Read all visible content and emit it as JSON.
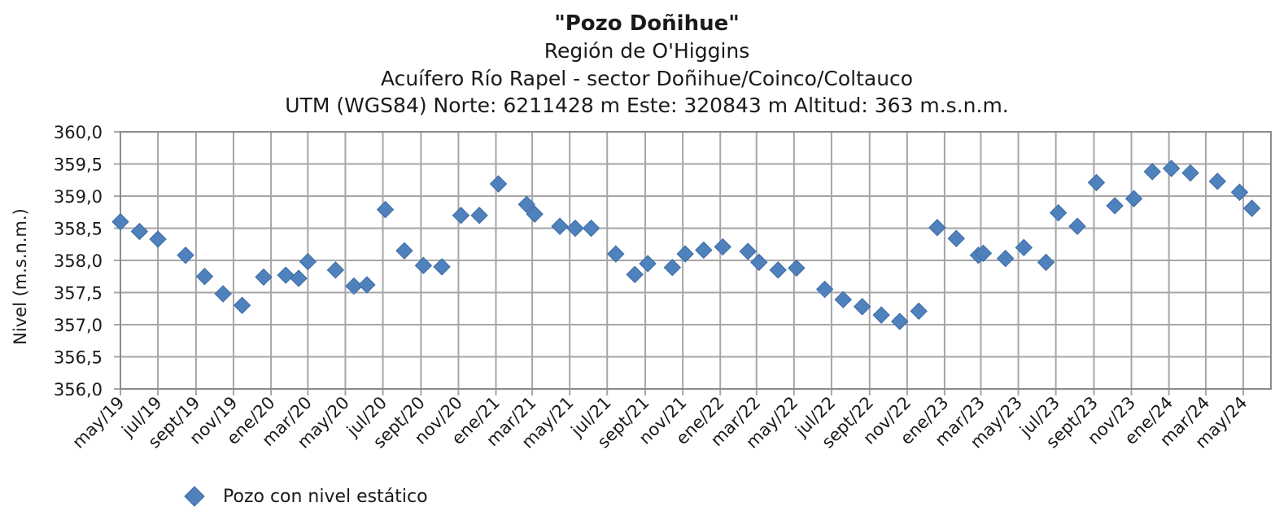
{
  "chart_data": {
    "type": "scatter",
    "title": "\"Pozo Doñihue\"",
    "subtitles": [
      "Región de O'Higgins",
      "Acuífero Río Rapel - sector Doñihue/Coinco/Coltauco",
      "UTM (WGS84) Norte: 6211428 m  Este: 320843 m   Altitud: 363 m.s.n.m."
    ],
    "ylabel": "Nivel (m.s.n.m.)",
    "xlabel": "",
    "ylim": [
      356.0,
      360.0
    ],
    "ytick_labels": [
      "356,0",
      "356,5",
      "357,0",
      "357,5",
      "358,0",
      "358,5",
      "359,0",
      "359,5",
      "360,0"
    ],
    "xlim": [
      "2019-05-01",
      "2024-06-15"
    ],
    "xtick_labels": [
      "may/19",
      "jul/19",
      "sept/19",
      "nov/19",
      "ene/20",
      "mar/20",
      "may/20",
      "jul/20",
      "sept/20",
      "nov/20",
      "ene/21",
      "mar/21",
      "may/21",
      "jul/21",
      "sept/21",
      "nov/21",
      "ene/22",
      "mar/22",
      "may/22",
      "jul/22",
      "sept/22",
      "nov/22",
      "ene/23",
      "mar/23",
      "may/23",
      "jul/23",
      "sept/23",
      "nov/23",
      "ene/24",
      "mar/24",
      "may/24"
    ],
    "grid": true,
    "legend_position": "bottom-left",
    "series": [
      {
        "name": "Pozo con nivel estático",
        "color": "#4f81bd",
        "marker": "diamond",
        "points": [
          {
            "x": "2019-05-01",
            "y": 358.6
          },
          {
            "x": "2019-06-01",
            "y": 358.45
          },
          {
            "x": "2019-07-01",
            "y": 358.33
          },
          {
            "x": "2019-08-15",
            "y": 358.08
          },
          {
            "x": "2019-09-15",
            "y": 357.75
          },
          {
            "x": "2019-10-15",
            "y": 357.48
          },
          {
            "x": "2019-11-15",
            "y": 357.3
          },
          {
            "x": "2019-12-20",
            "y": 357.74
          },
          {
            "x": "2020-01-25",
            "y": 357.77
          },
          {
            "x": "2020-02-15",
            "y": 357.72
          },
          {
            "x": "2020-03-01",
            "y": 357.98
          },
          {
            "x": "2020-04-15",
            "y": 357.85
          },
          {
            "x": "2020-05-15",
            "y": 357.6
          },
          {
            "x": "2020-06-05",
            "y": 357.62
          },
          {
            "x": "2020-07-05",
            "y": 358.79
          },
          {
            "x": "2020-08-05",
            "y": 358.15
          },
          {
            "x": "2020-09-05",
            "y": 357.92
          },
          {
            "x": "2020-10-05",
            "y": 357.9
          },
          {
            "x": "2020-11-05",
            "y": 358.7
          },
          {
            "x": "2020-12-05",
            "y": 358.7
          },
          {
            "x": "2021-01-05",
            "y": 359.19
          },
          {
            "x": "2021-02-20",
            "y": 358.87
          },
          {
            "x": "2021-03-05",
            "y": 358.72
          },
          {
            "x": "2021-04-15",
            "y": 358.53
          },
          {
            "x": "2021-05-10",
            "y": 358.5
          },
          {
            "x": "2021-06-05",
            "y": 358.5
          },
          {
            "x": "2021-07-15",
            "y": 358.1
          },
          {
            "x": "2021-08-15",
            "y": 357.78
          },
          {
            "x": "2021-09-05",
            "y": 357.95
          },
          {
            "x": "2021-10-15",
            "y": 357.89
          },
          {
            "x": "2021-11-05",
            "y": 358.1
          },
          {
            "x": "2021-12-05",
            "y": 358.16
          },
          {
            "x": "2022-01-05",
            "y": 358.21
          },
          {
            "x": "2022-02-15",
            "y": 358.14
          },
          {
            "x": "2022-03-05",
            "y": 357.97
          },
          {
            "x": "2022-04-05",
            "y": 357.85
          },
          {
            "x": "2022-05-05",
            "y": 357.88
          },
          {
            "x": "2022-06-20",
            "y": 357.55
          },
          {
            "x": "2022-07-20",
            "y": 357.39
          },
          {
            "x": "2022-08-20",
            "y": 357.28
          },
          {
            "x": "2022-09-20",
            "y": 357.15
          },
          {
            "x": "2022-10-20",
            "y": 357.05
          },
          {
            "x": "2022-11-20",
            "y": 357.21
          },
          {
            "x": "2022-12-20",
            "y": 358.51
          },
          {
            "x": "2023-01-20",
            "y": 358.34
          },
          {
            "x": "2023-02-25",
            "y": 358.08
          },
          {
            "x": "2023-03-05",
            "y": 358.11
          },
          {
            "x": "2023-04-10",
            "y": 358.03
          },
          {
            "x": "2023-05-10",
            "y": 358.2
          },
          {
            "x": "2023-06-15",
            "y": 357.97
          },
          {
            "x": "2023-07-05",
            "y": 358.74
          },
          {
            "x": "2023-08-05",
            "y": 358.53
          },
          {
            "x": "2023-09-05",
            "y": 359.21
          },
          {
            "x": "2023-10-05",
            "y": 358.85
          },
          {
            "x": "2023-11-05",
            "y": 358.96
          },
          {
            "x": "2023-12-05",
            "y": 359.38
          },
          {
            "x": "2024-01-05",
            "y": 359.43
          },
          {
            "x": "2024-02-05",
            "y": 359.36
          },
          {
            "x": "2024-03-20",
            "y": 359.23
          },
          {
            "x": "2024-04-25",
            "y": 359.06
          },
          {
            "x": "2024-05-15",
            "y": 358.81
          }
        ]
      }
    ]
  }
}
